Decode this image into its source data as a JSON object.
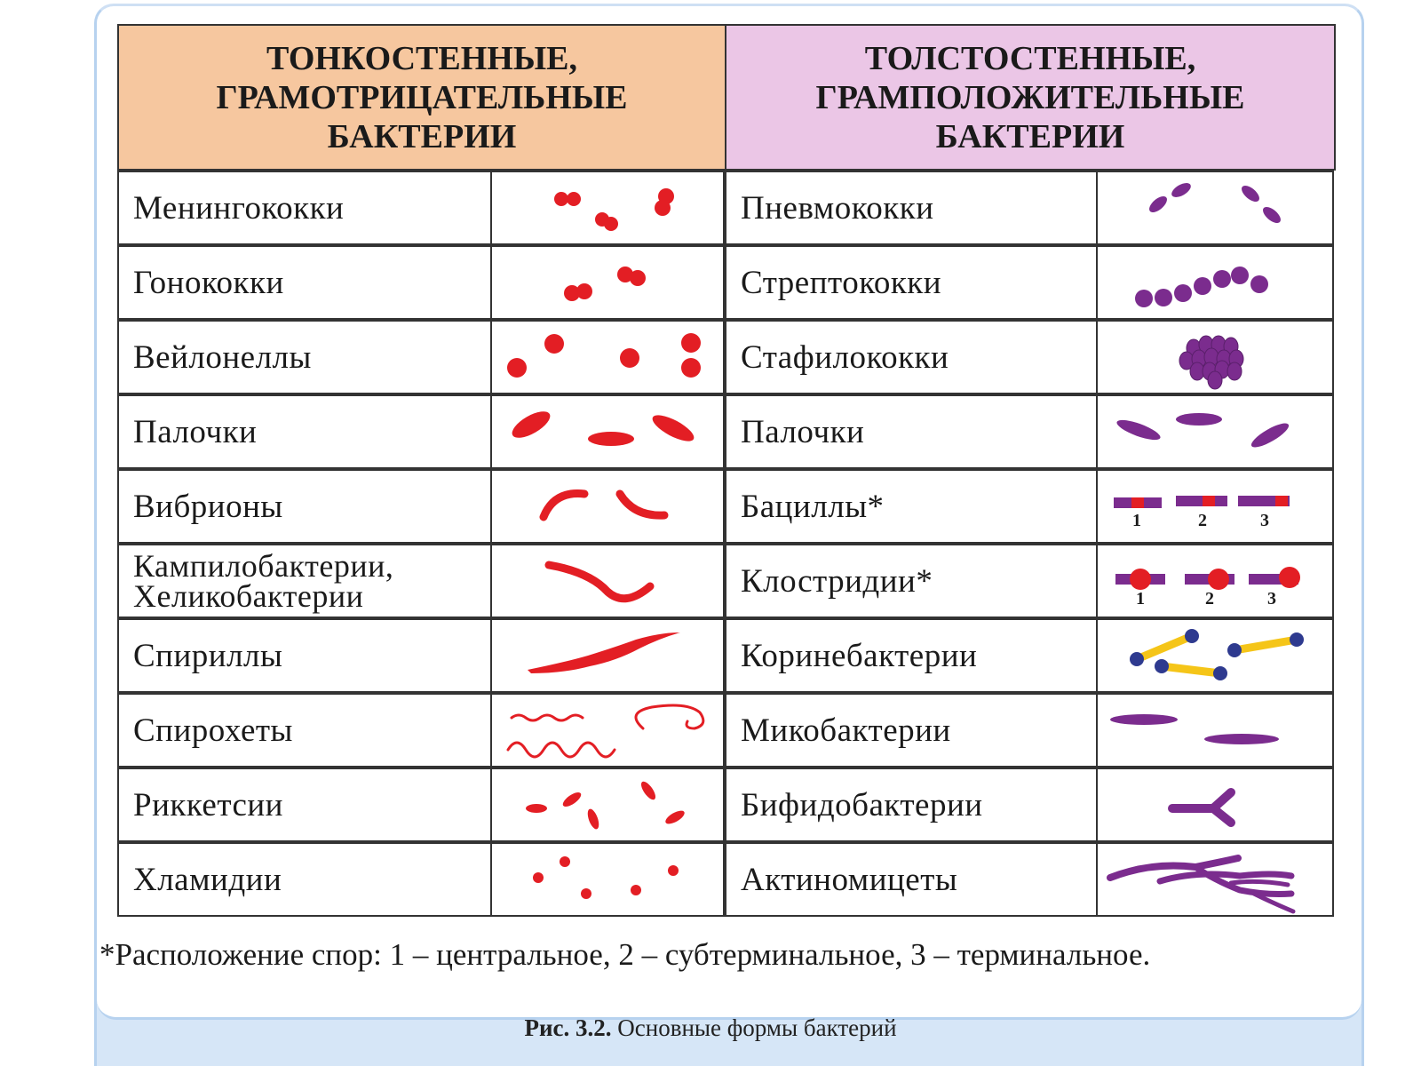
{
  "header": {
    "left_title": "ТОНКОСТЕННЫЕ, ГРАМОТРИЦАТЕЛЬНЫЕ БАКТЕРИИ",
    "right_title": "ТОЛСТОСТЕННЫЕ, ГРАМПОЛОЖИТЕЛЬНЫЕ БАКТЕРИИ"
  },
  "left_rows": [
    {
      "name": "Менингококки",
      "icon": "diplococci-pairs-icon"
    },
    {
      "name": "Гонококки",
      "icon": "gonococci-pairs-icon"
    },
    {
      "name": "Вейлонеллы",
      "icon": "scattered-cocci-icon"
    },
    {
      "name": "Палочки",
      "icon": "rods-icon"
    },
    {
      "name": "Вибрионы",
      "icon": "curved-rods-icon"
    },
    {
      "name_line1": "Кампилобактерии,",
      "name_line2": "Хеликобактерии",
      "icon": "wavy-rod-icon"
    },
    {
      "name": "Спириллы",
      "icon": "spiral-rod-icon"
    },
    {
      "name": "Спирохеты",
      "icon": "thin-spirals-icon"
    },
    {
      "name": "Риккетсии",
      "icon": "small-rods-icon"
    },
    {
      "name": "Хламидии",
      "icon": "tiny-dots-icon"
    }
  ],
  "right_rows": [
    {
      "name": "Пневмококки",
      "icon": "lanceolate-diplococci-icon"
    },
    {
      "name": "Стрептококки",
      "icon": "chain-cocci-icon"
    },
    {
      "name": "Стафилококки",
      "icon": "cluster-cocci-icon"
    },
    {
      "name": "Палочки",
      "icon": "rods-icon"
    },
    {
      "name": "Бациллы*",
      "icon": "bacilli-spores-icon",
      "labels": [
        "1",
        "2",
        "3"
      ]
    },
    {
      "name": "Клостридии*",
      "icon": "clostridia-spores-icon",
      "labels": [
        "1",
        "2",
        "3"
      ]
    },
    {
      "name": "Коринебактерии",
      "icon": "corynebacteria-icon"
    },
    {
      "name": "Микобактерии",
      "icon": "mycobacteria-icon"
    },
    {
      "name": "Бифидобактерии",
      "icon": "bifid-rod-icon"
    },
    {
      "name": "Актиномицеты",
      "icon": "branching-filaments-icon"
    }
  ],
  "footnote": "*Расположение спор: 1 – центральное,  2 – субтерминальное, 3 – терминальное.",
  "caption": {
    "label": "Рис. 3.2.",
    "text": "Основные формы бактерий"
  },
  "colors": {
    "gram_negative": "#e31e24",
    "gram_positive": "#7b2c8e",
    "spore": "#e31e24",
    "coryne_body": "#f5c518",
    "coryne_granule": "#2e3a8f",
    "left_header_bg": "#f6c79f",
    "right_header_bg": "#ebc6e6"
  }
}
